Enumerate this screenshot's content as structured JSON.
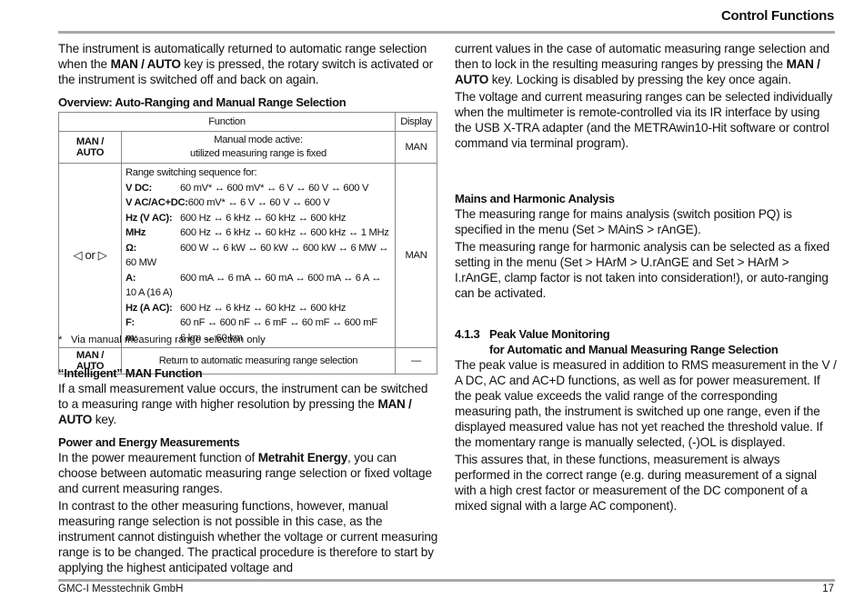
{
  "header": {
    "title": "Control Functions"
  },
  "left": {
    "intro": [
      "The instrument is automatically returned to automatic range selection when the ",
      "MAN / AUTO",
      " key is pressed, the rotary switch is activated or the instrument is switched off and back on again."
    ],
    "overview_heading": "Overview: Auto-Ranging and Manual Range Selection",
    "table": {
      "header": [
        "Function",
        "Display"
      ],
      "rows": [
        {
          "key": "MAN / AUTO",
          "function": [
            "Manual mode active:",
            "utilized measuring range is fixed"
          ],
          "display": "MAN"
        },
        {
          "key": "◁ or ▷",
          "intro": "Range switching sequence for:",
          "items": [
            {
              "label": "V DC:",
              "value": "60 mV* ↔ 600 mV* ↔ 6 V ↔ 60 V ↔ 600 V"
            },
            {
              "label": "V AC/AC+DC:",
              "value": "600 mV* ↔ 6 V ↔ 60 V ↔ 600 V"
            },
            {
              "label": "Hz (V AC):",
              "value": "600 Hz ↔ 6 kHz ↔ 60 kHz ↔ 600 kHz"
            },
            {
              "label": "MHz",
              "value": "600 Hz ↔ 6 kHz ↔ 60 kHz ↔ 600 kHz ↔ 1 MHz"
            },
            {
              "label": "Ω:",
              "value": "600 W ↔ 6 kW ↔ 60 kW ↔ 600 kW ↔ 6 MW ↔ 60 MW"
            },
            {
              "label": "A:",
              "value": "600 mA ↔ 6 mA ↔ 60 mA ↔ 600 mA ↔ 6 A ↔ 10 A (16 A)"
            },
            {
              "label": "Hz (A AC):",
              "value": "600 Hz ↔ 6 kHz ↔ 60 kHz ↔ 600 kHz"
            },
            {
              "label": "F:",
              "value": "60 nF ↔ 600 nF ↔ 6 mF ↔ 60 mF ↔ 600 mF"
            },
            {
              "label": "m:",
              "value": "6 km ↔ 60 km"
            }
          ],
          "display": "MAN"
        },
        {
          "key": "MAN / AUTO",
          "function": [
            "Return to automatic measuring range selection"
          ],
          "display": "—"
        }
      ]
    },
    "footnote": {
      "mark": "*",
      "text": "Via manual measuring range selection only"
    },
    "intelligent": {
      "heading": "“Intelligent” MAN Function",
      "text": [
        "If a small measurement value occurs, the instrument can be switched to a measuring range with higher resolution by pressing the ",
        "MAN / AUTO",
        " key."
      ]
    },
    "power": {
      "heading": "Power and Energy Measurements",
      "p1": [
        "In the power meaurement function of ",
        "Metrahit Energy",
        ", you can choose between automatic measuring range selection or fixed voltage and current measuring ranges."
      ],
      "p2": "In contrast to the other measuring functions, however, manual measuring range selection is not possible in this case, as the instrument cannot distinguish whether the voltage or current measuring range is to be changed. The practical procedure is therefore to start by applying the highest anticipated voltage and"
    }
  },
  "right": {
    "p1": [
      "current values in the case of automatic measuring range selection and then to lock in the resulting measuring ranges by pressing the ",
      "MAN / AUTO",
      " key. Locking is disabled by pressing the key once again."
    ],
    "p2": "The voltage and current measuring ranges can be selected individually when the multimeter is remote-controlled via its IR interface by using the USB X-TRA adapter (and the METRAwin10-Hit software or control command via terminal program).",
    "mains": {
      "heading": "Mains and Harmonic Analysis",
      "p1": "The measuring range for mains analysis (switch position PQ) is specified in the menu (Set > MAinS > rAnGE).",
      "p2": "The measuring range for harmonic analysis can be selected as a fixed setting in the menu (Set > HArM > U.rAnGE and Set > HArM > I.rAnGE, clamp factor is not taken into consideration!), or auto-ranging can be activated."
    },
    "peak": {
      "number": "4.1.3",
      "title": "Peak Value Monitoring",
      "subtitle": "for Automatic and Manual Measuring Range Selection",
      "p1": "The peak value is measured in addition to RMS measurement in the V / A DC, AC and AC+D functions, as well as for power measurement. If the peak value exceeds the valid range of the corresponding measuring path, the instrument is switched up one range, even if the displayed measured value has not yet reached the threshold value. If the momentary range is manually selected, (-)OL is displayed.",
      "p2": "This assures that, in these functions, measurement is always performed in the correct range (e.g. during measurement of a signal with a high crest factor or measurement of the DC component of a mixed signal with a large AC component)."
    }
  },
  "footer": {
    "company": "GMC-I Messtechnik GmbH",
    "page": "17"
  }
}
